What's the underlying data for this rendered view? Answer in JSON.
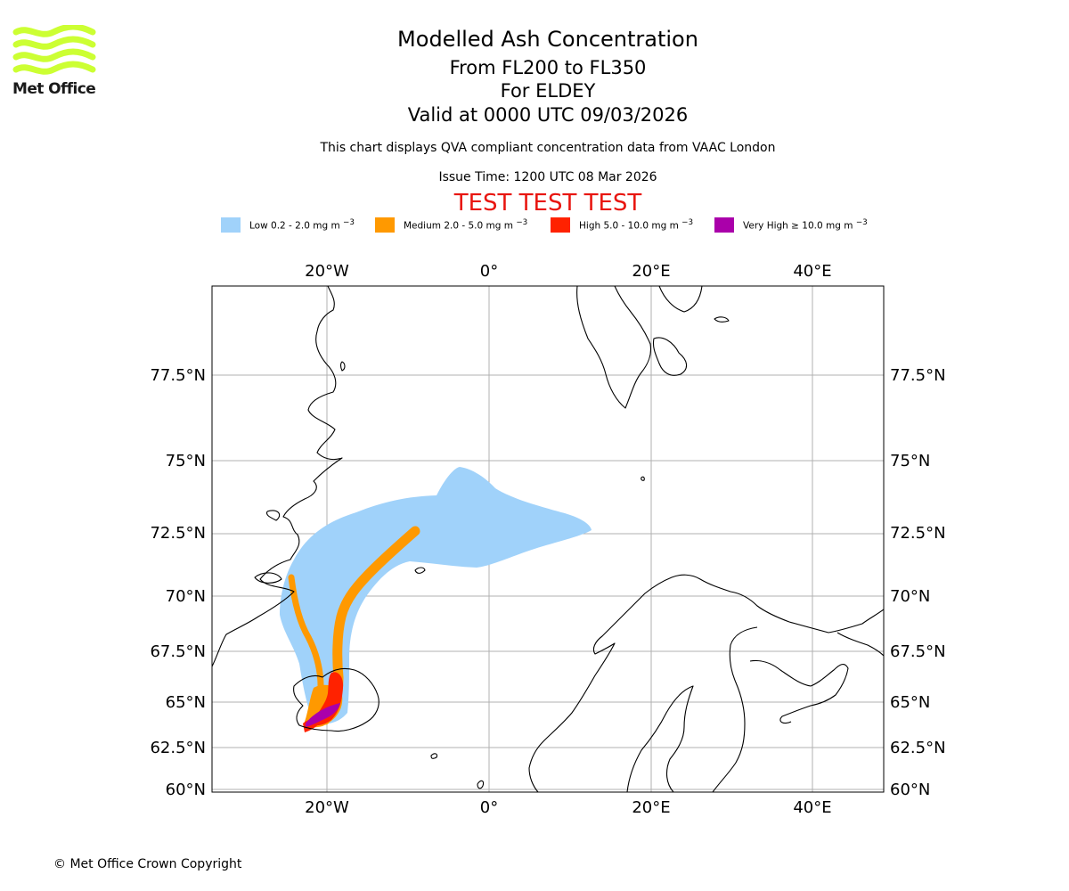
{
  "logo": {
    "text": "Met Office",
    "color": "#ccff33"
  },
  "header": {
    "title": "Modelled Ash Concentration",
    "flight_level_range": "From FL200 to FL350",
    "volcano": "For ELDEY",
    "valid_time": "Valid at 0000 UTC 09/03/2026",
    "note": "This chart displays QVA compliant concentration data from VAAC London",
    "issue_time": "Issue Time: 1200 UTC 08 Mar 2026",
    "test_banner": "TEST TEST TEST"
  },
  "legend": [
    {
      "label": "Low 0.2 - 2.0 mg m",
      "sup": "−3",
      "color": "#a0d2fa"
    },
    {
      "label": "Medium 2.0 - 5.0 mg m",
      "sup": "−3",
      "color": "#ff9900"
    },
    {
      "label": "High 5.0 - 10.0 mg m",
      "sup": "−3",
      "color": "#ff2200"
    },
    {
      "label": "Very High  ≥  10.0 mg m",
      "sup": "−3",
      "color": "#aa00aa"
    }
  ],
  "map": {
    "lon_labels": [
      "20°W",
      "0°",
      "20°E",
      "40°E"
    ],
    "lat_labels": [
      "77.5°N",
      "75°N",
      "72.5°N",
      "70°N",
      "67.5°N",
      "65°N",
      "62.5°N",
      "60°N"
    ],
    "gridline_color": "#b0b0b0",
    "coastline_color": "#000000"
  },
  "footer": {
    "copyright": "© Met Office Crown Copyright"
  }
}
